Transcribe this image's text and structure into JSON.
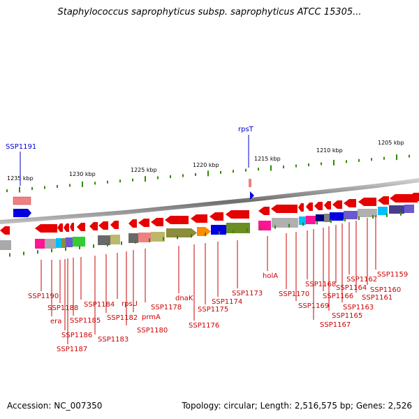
{
  "title": "Staphylococcus saprophyticus subsp. saprophyticus ATCC 15305...",
  "footer": {
    "accession": "Accession: NC_007350",
    "topology": "Topology: circular; Length: 2,516,575 bp; Genes: 2,526"
  },
  "colors": {
    "gene_red": "#e60000",
    "label_red": "#cc0000",
    "label_blue": "#0000cc",
    "scale_green": "#2e8b00",
    "backbone_gray": "#808080"
  },
  "scale_labels": [
    "1235 kbp",
    "1230 kbp",
    "1225 kbp",
    "1220 kbp",
    "1215 kbp",
    "1210 kbp",
    "1205 kbp"
  ],
  "top_labels": [
    {
      "text": "SSP1191",
      "color": "blue"
    },
    {
      "text": "rpsT",
      "color": "blue"
    }
  ],
  "gene_labels": [
    "SSP1190",
    "era",
    "SSP1188",
    "SSP1186",
    "SSP1187",
    "SSP1185",
    "SSP1184",
    "SSP1183",
    "SSP1182",
    "rpsU",
    "SSP1180",
    "prmA",
    "SSP1178",
    "dnaK",
    "SSP1176",
    "SSP1175",
    "SSP1174",
    "SSP1173",
    "holA",
    "SSP1170",
    "SSP1169",
    "SSP1168",
    "SSP1167",
    "SSP1166",
    "SSP1165",
    "SSP1164",
    "SSP1163",
    "SSP1162",
    "SSP1161",
    "SSP1160",
    "SSP1159"
  ]
}
